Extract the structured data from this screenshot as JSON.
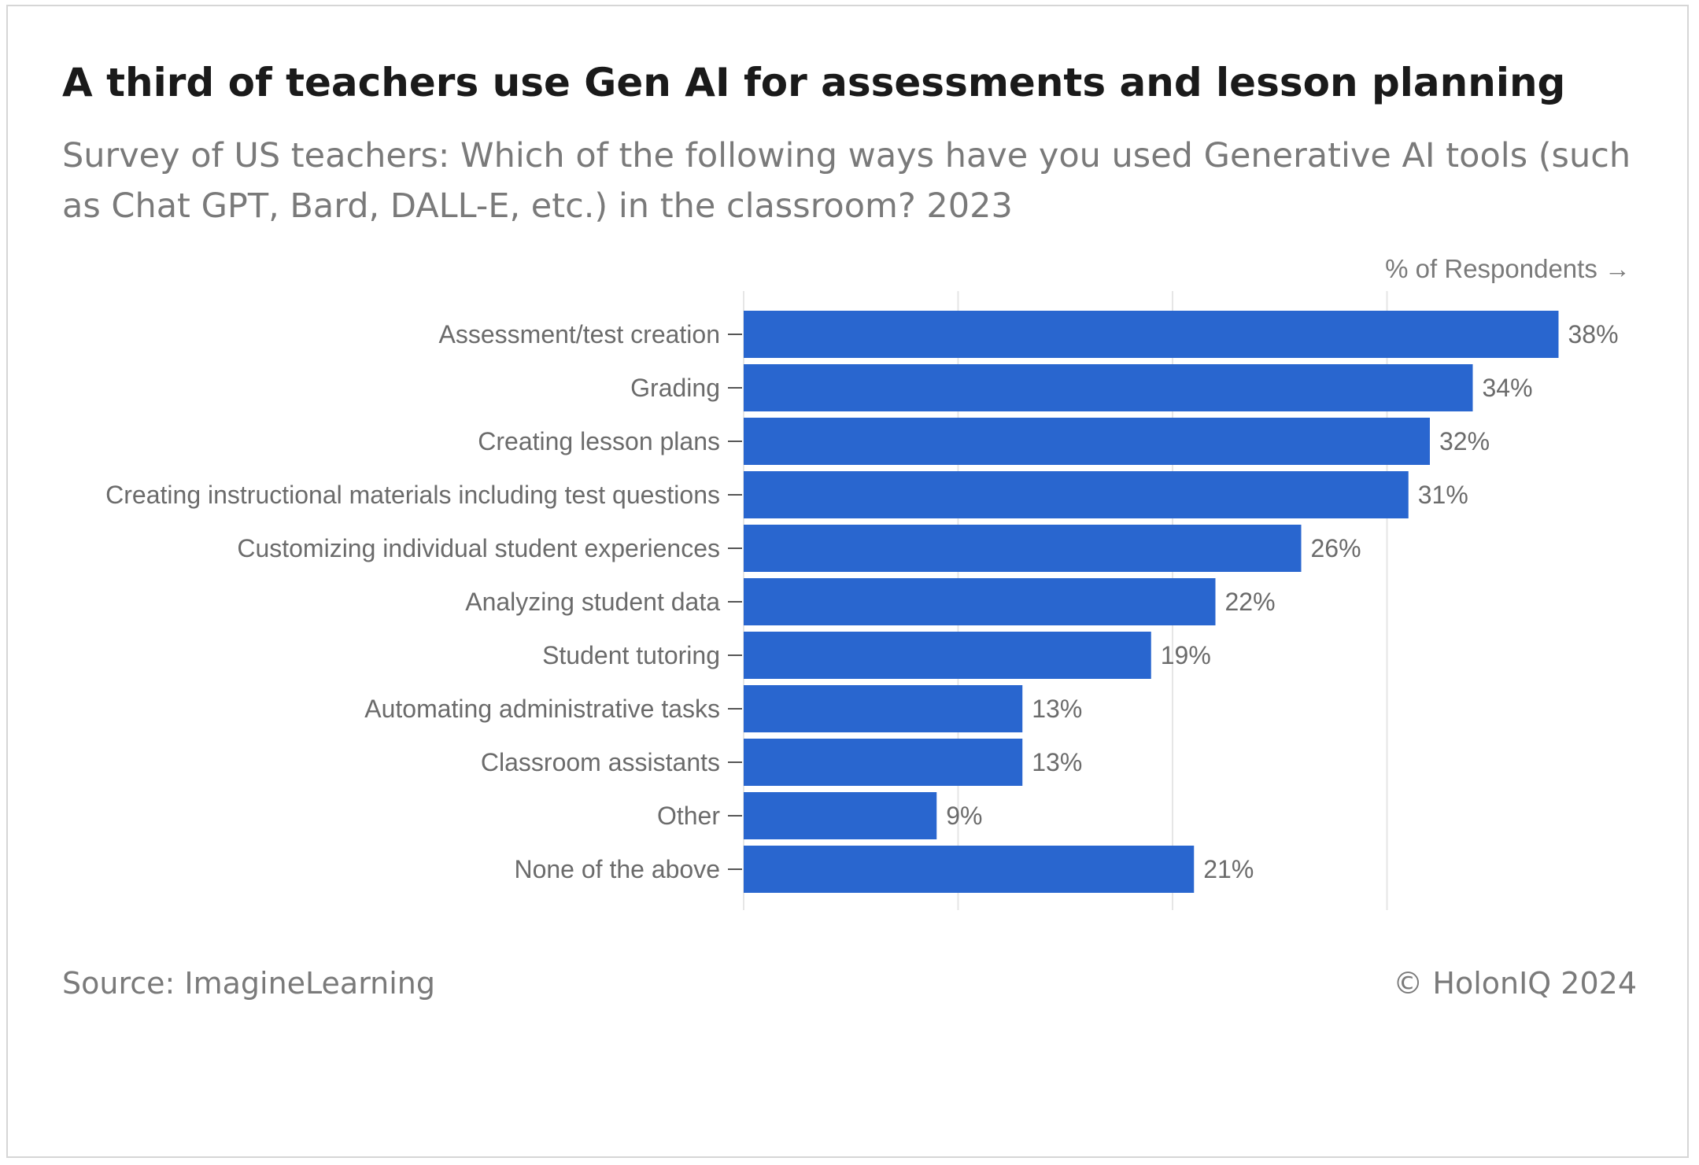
{
  "header": {
    "title": "A third of teachers use Gen AI for assessments and lesson planning",
    "subtitle": "Survey of US teachers: Which of the following ways have you used Generative AI tools (such as Chat GPT, Bard, DALL-E, etc.) in the classroom? 2023"
  },
  "footer": {
    "source": "Source: ImagineLearning",
    "copyright": "© HolonIQ 2024"
  },
  "chart_data": {
    "type": "bar",
    "orientation": "horizontal",
    "xlabel": "% of Respondents →",
    "categories": [
      "Assessment/test creation",
      "Grading",
      "Creating lesson plans",
      "Creating instructional materials including test questions",
      "Customizing individual student experiences",
      "Analyzing student data",
      "Student tutoring",
      "Automating administrative tasks",
      "Classroom assistants",
      "Other",
      "None of the above"
    ],
    "values": [
      38,
      34,
      32,
      31,
      26,
      22,
      19,
      13,
      13,
      9,
      21
    ],
    "value_labels": [
      "38%",
      "34%",
      "32%",
      "31%",
      "26%",
      "22%",
      "19%",
      "13%",
      "13%",
      "9%",
      "21%"
    ],
    "xlim": [
      0,
      40
    ],
    "gridlines": [
      0,
      10,
      20,
      30
    ],
    "grid": true,
    "bar_color": "#2966cf",
    "grid_color": "#e6e6e6"
  }
}
